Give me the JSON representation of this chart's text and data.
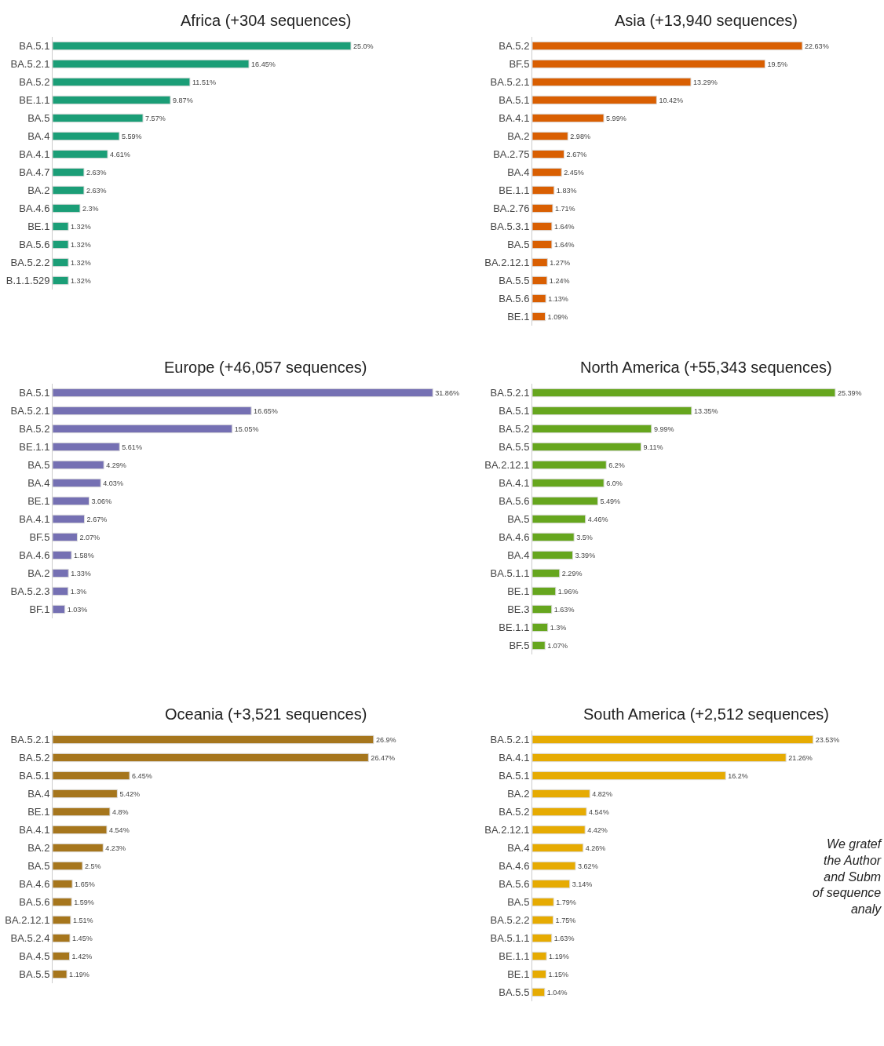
{
  "chart_data": [
    {
      "type": "bar",
      "orientation": "horizontal",
      "title": "Africa (+304 sequences)",
      "color": "#1b9e77",
      "categories": [
        "BA.5.1",
        "BA.5.2.1",
        "BA.5.2",
        "BE.1.1",
        "BA.5",
        "BA.4",
        "BA.4.1",
        "BA.4.7",
        "BA.2",
        "BA.4.6",
        "BE.1",
        "BA.5.6",
        "BA.5.2.2",
        "B.1.1.529"
      ],
      "values": [
        25.0,
        16.45,
        11.51,
        9.87,
        7.57,
        5.59,
        4.61,
        2.63,
        2.63,
        2.3,
        1.32,
        1.32,
        1.32,
        1.32
      ],
      "value_labels": [
        "25.0%",
        "16.45%",
        "11.51%",
        "9.87%",
        "7.57%",
        "5.59%",
        "4.61%",
        "2.63%",
        "2.63%",
        "2.3%",
        "1.32%",
        "1.32%",
        "1.32%",
        "1.32%"
      ]
    },
    {
      "type": "bar",
      "orientation": "horizontal",
      "title": "Asia (+13,940 sequences)",
      "color": "#d95f02",
      "categories": [
        "BA.5.2",
        "BF.5",
        "BA.5.2.1",
        "BA.5.1",
        "BA.4.1",
        "BA.2",
        "BA.2.75",
        "BA.4",
        "BE.1.1",
        "BA.2.76",
        "BA.5.3.1",
        "BA.5",
        "BA.2.12.1",
        "BA.5.5",
        "BA.5.6",
        "BE.1"
      ],
      "values": [
        22.63,
        19.5,
        13.29,
        10.42,
        5.99,
        2.98,
        2.67,
        2.45,
        1.83,
        1.71,
        1.64,
        1.64,
        1.27,
        1.24,
        1.13,
        1.09
      ],
      "value_labels": [
        "22.63%",
        "19.5%",
        "13.29%",
        "10.42%",
        "5.99%",
        "2.98%",
        "2.67%",
        "2.45%",
        "1.83%",
        "1.71%",
        "1.64%",
        "1.64%",
        "1.27%",
        "1.24%",
        "1.13%",
        "1.09%"
      ]
    },
    {
      "type": "bar",
      "orientation": "horizontal",
      "title": "Europe (+46,057 sequences)",
      "color": "#7570b3",
      "categories": [
        "BA.5.1",
        "BA.5.2.1",
        "BA.5.2",
        "BE.1.1",
        "BA.5",
        "BA.4",
        "BE.1",
        "BA.4.1",
        "BF.5",
        "BA.4.6",
        "BA.2",
        "BA.5.2.3",
        "BF.1"
      ],
      "values": [
        31.86,
        16.65,
        15.05,
        5.61,
        4.29,
        4.03,
        3.06,
        2.67,
        2.07,
        1.58,
        1.33,
        1.3,
        1.03
      ],
      "value_labels": [
        "31.86%",
        "16.65%",
        "15.05%",
        "5.61%",
        "4.29%",
        "4.03%",
        "3.06%",
        "2.67%",
        "2.07%",
        "1.58%",
        "1.33%",
        "1.3%",
        "1.03%"
      ]
    },
    {
      "type": "bar",
      "orientation": "horizontal",
      "title": "North America (+55,343 sequences)",
      "color": "#66a61e",
      "categories": [
        "BA.5.2.1",
        "BA.5.1",
        "BA.5.2",
        "BA.5.5",
        "BA.2.12.1",
        "BA.4.1",
        "BA.5.6",
        "BA.5",
        "BA.4.6",
        "BA.4",
        "BA.5.1.1",
        "BE.1",
        "BE.3",
        "BE.1.1",
        "BF.5"
      ],
      "values": [
        25.39,
        13.35,
        9.99,
        9.11,
        6.2,
        6.0,
        5.49,
        4.46,
        3.5,
        3.39,
        2.29,
        1.96,
        1.63,
        1.3,
        1.07
      ],
      "value_labels": [
        "25.39%",
        "13.35%",
        "9.99%",
        "9.11%",
        "6.2%",
        "6.0%",
        "5.49%",
        "4.46%",
        "3.5%",
        "3.39%",
        "2.29%",
        "1.96%",
        "1.63%",
        "1.3%",
        "1.07%"
      ]
    },
    {
      "type": "bar",
      "orientation": "horizontal",
      "title": "Oceania (+3,521 sequences)",
      "color": "#a6761d",
      "categories": [
        "BA.5.2.1",
        "BA.5.2",
        "BA.5.1",
        "BA.4",
        "BE.1",
        "BA.4.1",
        "BA.2",
        "BA.5",
        "BA.4.6",
        "BA.5.6",
        "BA.2.12.1",
        "BA.5.2.4",
        "BA.4.5",
        "BA.5.5"
      ],
      "values": [
        26.9,
        26.47,
        6.45,
        5.42,
        4.8,
        4.54,
        4.23,
        2.5,
        1.65,
        1.59,
        1.51,
        1.45,
        1.42,
        1.19
      ],
      "value_labels": [
        "26.9%",
        "26.47%",
        "6.45%",
        "5.42%",
        "4.8%",
        "4.54%",
        "4.23%",
        "2.5%",
        "1.65%",
        "1.59%",
        "1.51%",
        "1.45%",
        "1.42%",
        "1.19%"
      ]
    },
    {
      "type": "bar",
      "orientation": "horizontal",
      "title": "South America (+2,512 sequences)",
      "color": "#e6ab02",
      "categories": [
        "BA.5.2.1",
        "BA.4.1",
        "BA.5.1",
        "BA.2",
        "BA.5.2",
        "BA.2.12.1",
        "BA.4",
        "BA.4.6",
        "BA.5.6",
        "BA.5",
        "BA.5.2.2",
        "BA.5.1.1",
        "BE.1.1",
        "BE.1",
        "BA.5.5"
      ],
      "values": [
        23.53,
        21.26,
        16.2,
        4.82,
        4.54,
        4.42,
        4.26,
        3.62,
        3.14,
        1.79,
        1.75,
        1.63,
        1.19,
        1.15,
        1.04
      ],
      "value_labels": [
        "23.53%",
        "21.26%",
        "16.2%",
        "4.82%",
        "4.54%",
        "4.42%",
        "4.26%",
        "3.62%",
        "3.14%",
        "1.79%",
        "1.75%",
        "1.63%",
        "1.19%",
        "1.15%",
        "1.04%"
      ],
      "annotations": [
        "We gratef\nthe Author\nand Subm\nof sequence\nanaly"
      ]
    }
  ]
}
